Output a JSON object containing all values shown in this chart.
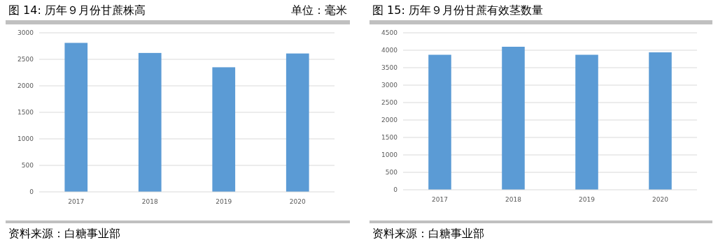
{
  "chart_data": [
    {
      "type": "bar",
      "title": "图 14: 历年９月份甘蔗株高",
      "annotations": [
        "单位：毫米",
        "资料来源：白糖事业部"
      ],
      "categories": [
        "2017",
        "2018",
        "2019",
        "2020"
      ],
      "values": [
        2810,
        2620,
        2350,
        2610
      ],
      "color": "#5b9bd5",
      "ylim": [
        0,
        3000
      ],
      "yticks": [
        0,
        500,
        1000,
        1500,
        2000,
        2500,
        3000
      ],
      "grid": "y"
    },
    {
      "type": "bar",
      "title": "图 15:   历年９月份甘蔗有效茎数量",
      "annotations": [
        "资料来源：白糖事业部"
      ],
      "categories": [
        "2017",
        "2018",
        "2019",
        "2020"
      ],
      "values": [
        3870,
        4100,
        3870,
        3940
      ],
      "color": "#5b9bd5",
      "ylim": [
        0,
        4500
      ],
      "yticks": [
        0,
        500,
        1000,
        1500,
        2000,
        2500,
        3000,
        3500,
        4000,
        4500
      ],
      "grid": "y"
    }
  ]
}
